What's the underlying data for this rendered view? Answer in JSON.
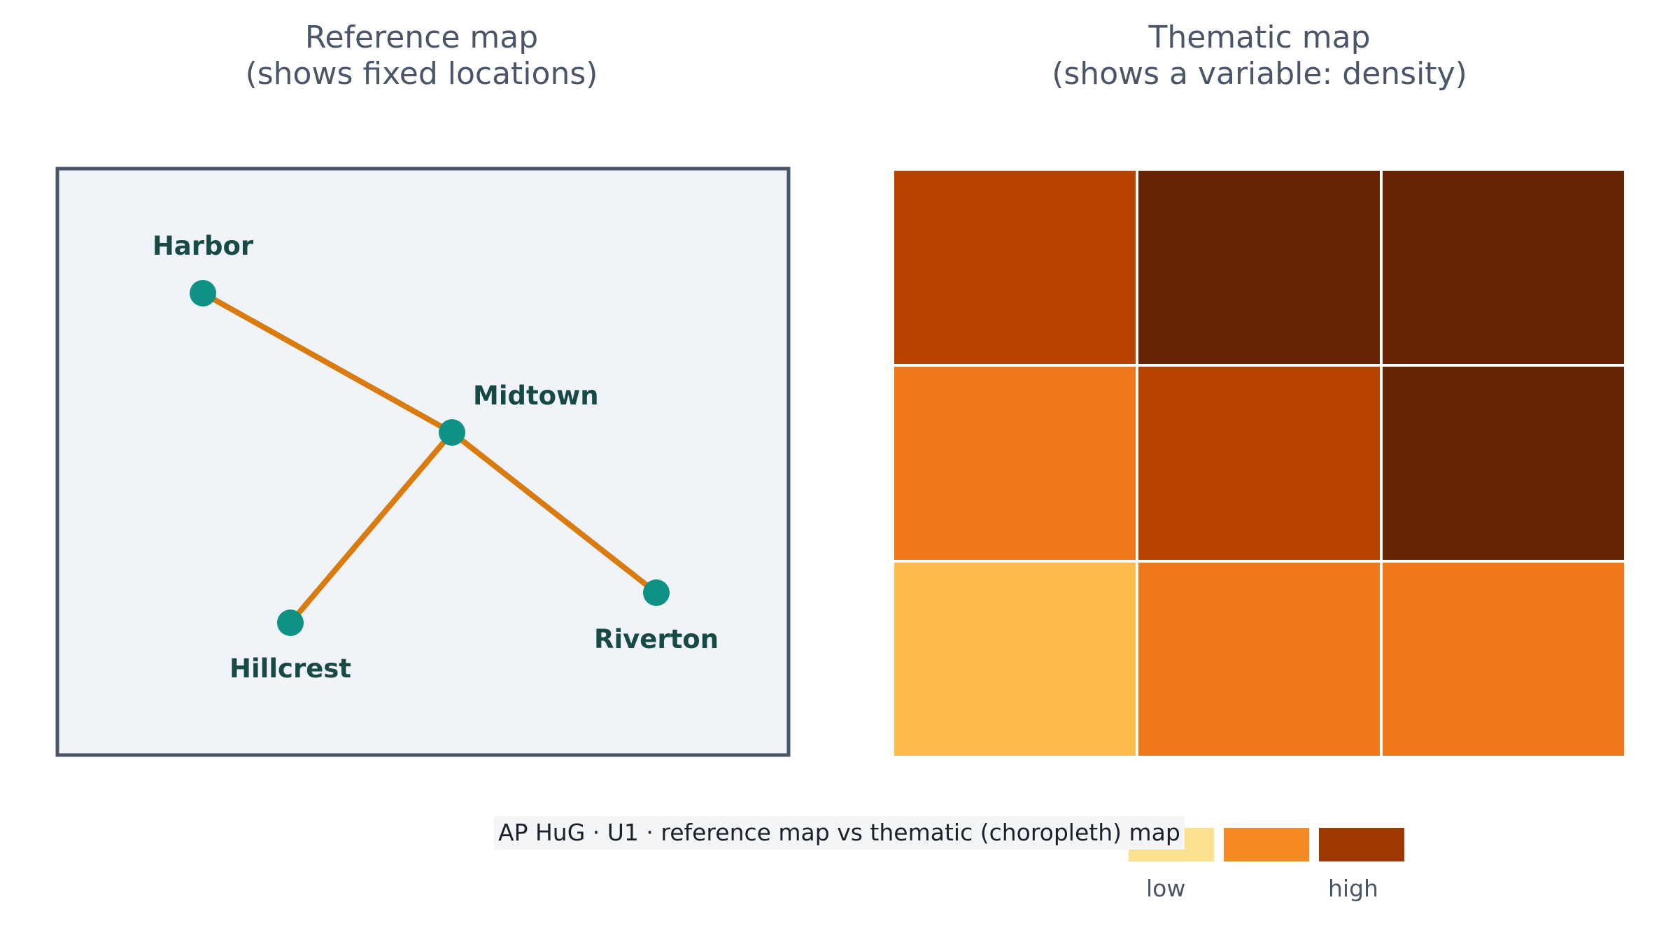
{
  "reference_map": {
    "title": "Reference map\n(shows fixed locations)",
    "node_color": "#0f9185",
    "route_color": "#d97b0e",
    "label_color": "#174a44",
    "frame_color": "#4a5568",
    "background": "#f0f3f8",
    "places": [
      {
        "id": "harbor",
        "label": "Harbor"
      },
      {
        "id": "midtown",
        "label": "Midtown"
      },
      {
        "id": "hillcrest",
        "label": "Hillcrest"
      },
      {
        "id": "riverton",
        "label": "Riverton"
      }
    ],
    "routes": [
      {
        "from": "harbor",
        "to": "midtown"
      },
      {
        "from": "midtown",
        "to": "hillcrest"
      },
      {
        "from": "midtown",
        "to": "riverton"
      }
    ]
  },
  "thematic_map": {
    "title": "Thematic map\n(shows a variable: density)",
    "grid": [
      [
        "#b84100",
        "#642405",
        "#642405"
      ],
      [
        "#ef781a",
        "#b84100",
        "#642405"
      ],
      [
        "#ffbb4a",
        "#ef781a",
        "#ef781a"
      ]
    ],
    "legend": {
      "swatches": [
        "#fde08e",
        "#f58a22",
        "#a13703"
      ],
      "low_label": "low",
      "high_label": "high"
    }
  },
  "caption": "AP HuG · U1 · reference map vs thematic (choropleth) map"
}
